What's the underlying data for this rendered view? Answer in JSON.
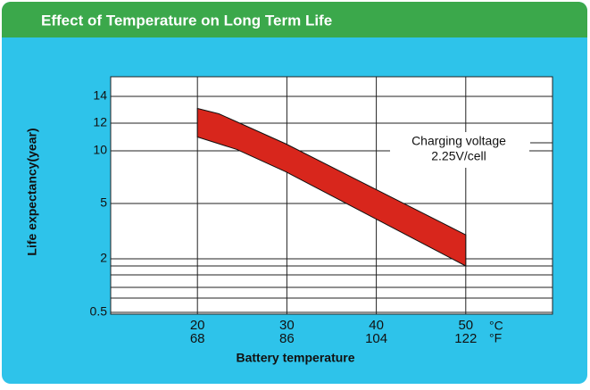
{
  "chart_data": {
    "type": "band",
    "title": "Effect of Temperature on Long Term Life",
    "y_label": "Life expectancy(year)",
    "x_label": "Battery temperature",
    "annotation": [
      "Charging voltage",
      "2.25V/cell"
    ],
    "x_unit_c": "°C",
    "x_unit_f": "°F",
    "xlim": [
      10.3,
      59.7
    ],
    "xticks": [
      20,
      30,
      40,
      50
    ],
    "xticks_f": [
      68,
      86,
      104,
      122
    ],
    "yticks": [
      0.5,
      2,
      5,
      10,
      12,
      14
    ],
    "grid": true,
    "color": "#d8261c",
    "series": [
      {
        "x": [
          20,
          22.4,
          24.4,
          29.9,
          50
        ],
        "values": [
          13.1,
          12.7,
          12.1,
          10.5,
          3.3
        ]
      },
      {
        "x": [
          20,
          24.4,
          29.9,
          50
        ],
        "values": [
          11.0,
          10.1,
          8.0,
          1.8
        ]
      }
    ]
  }
}
